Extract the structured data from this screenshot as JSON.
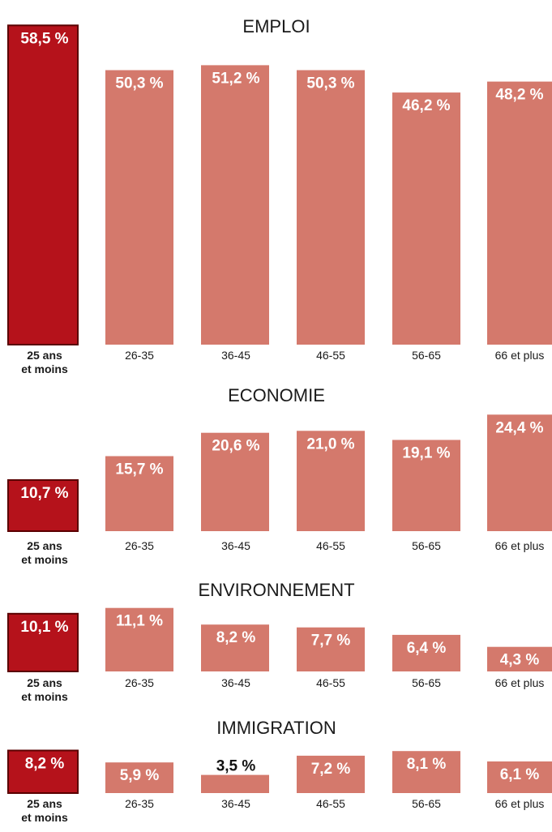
{
  "chart_data": [
    {
      "type": "bar",
      "title": "EMPLOI",
      "categories": [
        "25 ans et moins",
        "26-35",
        "36-45",
        "46-55",
        "56-65",
        "66 et plus"
      ],
      "values": [
        58.5,
        50.3,
        51.2,
        50.3,
        46.2,
        48.2
      ],
      "labels": [
        "58,5 %",
        "50,3 %",
        "51,2 %",
        "50,3 %",
        "46,2 %",
        "48,2 %"
      ],
      "highlight_index": 0
    },
    {
      "type": "bar",
      "title": "ECONOMIE",
      "categories": [
        "25 ans et moins",
        "26-35",
        "36-45",
        "46-55",
        "56-65",
        "66 et plus"
      ],
      "values": [
        10.7,
        15.7,
        20.6,
        21.0,
        19.1,
        24.4
      ],
      "labels": [
        "10,7 %",
        "15,7 %",
        "20,6 %",
        "21,0 %",
        "19,1 %",
        "24,4 %"
      ],
      "highlight_index": 0
    },
    {
      "type": "bar",
      "title": "ENVIRONNEMENT",
      "categories": [
        "25 ans et moins",
        "26-35",
        "36-45",
        "46-55",
        "56-65",
        "66 et plus"
      ],
      "values": [
        10.1,
        11.1,
        8.2,
        7.7,
        6.4,
        4.3
      ],
      "labels": [
        "10,1 %",
        "11,1 %",
        "8,2 %",
        "7,7 %",
        "6,4 %",
        "4,3 %"
      ],
      "highlight_index": 0
    },
    {
      "type": "bar",
      "title": "IMMIGRATION",
      "categories": [
        "25 ans et moins",
        "26-35",
        "36-45",
        "46-55",
        "56-65",
        "66 et plus"
      ],
      "values": [
        8.2,
        5.9,
        3.5,
        7.2,
        8.1,
        6.1
      ],
      "labels": [
        "8,2 %",
        "5,9 %",
        "3,5 %",
        "7,2 %",
        "8,1 %",
        "6,1 %"
      ],
      "highlight_index": 0
    }
  ],
  "colors": {
    "highlight_fill": "#b5121b",
    "highlight_border": "#5a0000",
    "bar_fill": "#d4796c",
    "text_dark": "#1a1a1a",
    "label_light": "#ffffff"
  }
}
